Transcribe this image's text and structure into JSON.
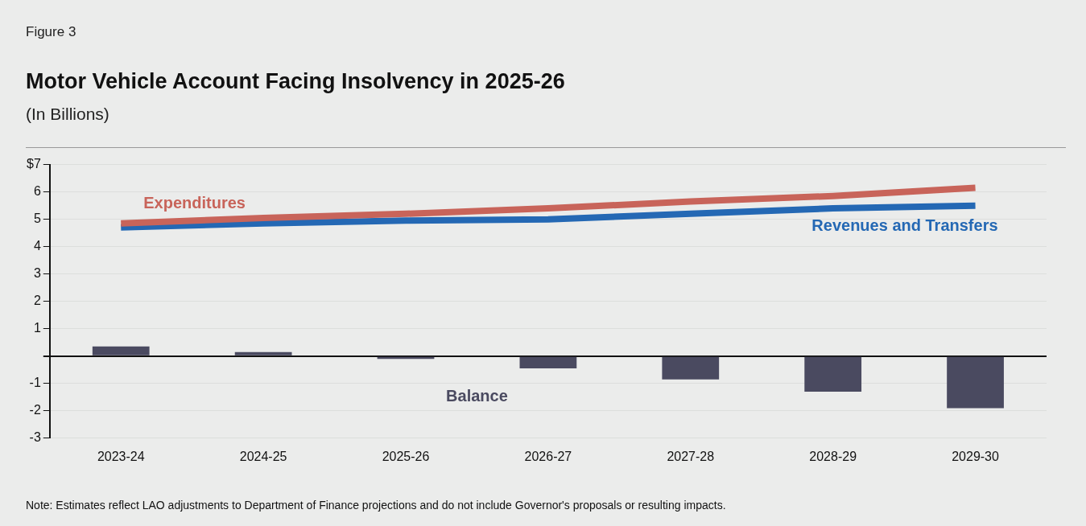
{
  "chart_data": {
    "type": "bar",
    "title": "Motor Vehicle Account Facing Insolvency in 2025-26",
    "subtitle": "(In Billions)",
    "categories": [
      "2023-24",
      "2024-25",
      "2025-26",
      "2026-27",
      "2027-28",
      "2028-29",
      "2029-30"
    ],
    "series": [
      {
        "name": "Expenditures",
        "type": "line",
        "color": "#c8645a",
        "values": [
          4.85,
          5.05,
          5.2,
          5.4,
          5.65,
          5.85,
          6.15
        ]
      },
      {
        "name": "Revenues and Transfers",
        "type": "line",
        "color": "#2468b4",
        "values": [
          4.7,
          4.85,
          4.95,
          5.0,
          5.2,
          5.4,
          5.5
        ]
      },
      {
        "name": "Balance",
        "color": "#4a4a60",
        "values": [
          0.35,
          0.15,
          -0.1,
          -0.45,
          -0.85,
          -1.3,
          -1.9
        ]
      }
    ],
    "ylim": [
      -3,
      7
    ],
    "yticks": [
      -3,
      -2,
      -1,
      {
        "value": 0,
        "label": null
      },
      1,
      2,
      3,
      4,
      5,
      6,
      {
        "value": 7,
        "label": "$7"
      }
    ],
    "grid": "y",
    "legend": false,
    "marker": "none",
    "line_style": "solid",
    "annotations": [
      "Figure 3",
      "Note: Estimates reflect LAO adjustments to Department of Finance projections and do not include Governor's proposals or resulting impacts."
    ]
  }
}
